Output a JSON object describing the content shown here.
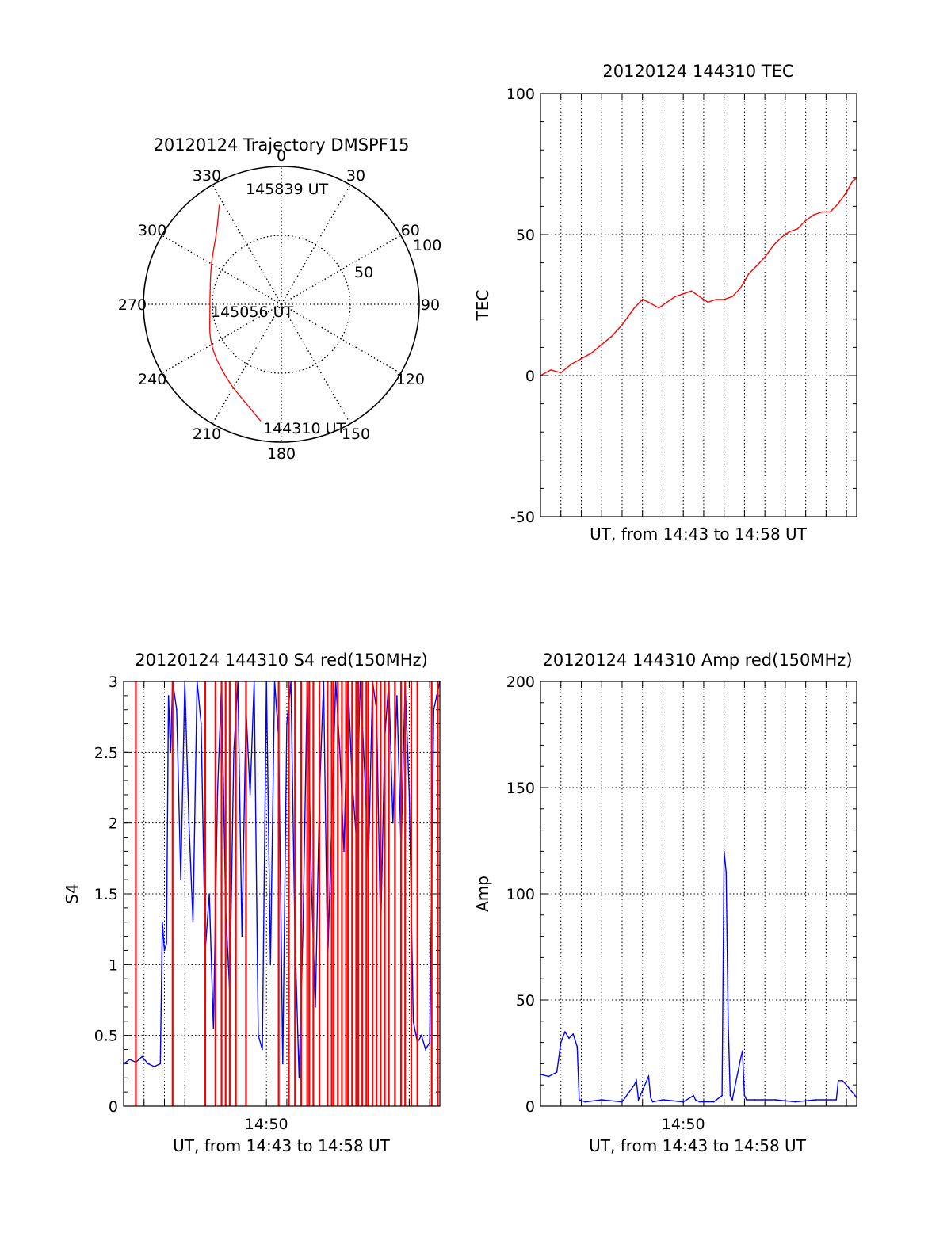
{
  "colors": {
    "red": "#ff0000",
    "blue": "#0000ff",
    "axis": "#000000"
  },
  "chart_data": [
    {
      "type": "polar",
      "title": "20120124 Trajectory DMSPF15",
      "azimuth_labels": [
        "0",
        "30",
        "60",
        "90",
        "120",
        "150",
        "180",
        "210",
        "240",
        "270",
        "300",
        "330"
      ],
      "radial_labels": [
        "50",
        "100"
      ],
      "radial_ticks": [
        50,
        100
      ],
      "grid": "dotted",
      "trajectory": {
        "color": "#ff0000",
        "points": [
          {
            "az": 190,
            "zd": 86
          },
          {
            "az": 200,
            "zd": 76
          },
          {
            "az": 215,
            "zd": 68
          },
          {
            "az": 240,
            "zd": 60
          },
          {
            "az": 265,
            "zd": 52
          },
          {
            "az": 275,
            "zd": 52
          },
          {
            "az": 300,
            "zd": 59
          },
          {
            "az": 318,
            "zd": 70
          },
          {
            "az": 328,
            "zd": 85
          }
        ]
      },
      "annotations": [
        "145839 UT",
        "145056 UT",
        "144310 UT"
      ]
    },
    {
      "type": "line",
      "title": "20120124 144310 TEC",
      "xlabel": "UT, from 14:43 to 14:58 UT",
      "ylabel": "TEC",
      "ylim": [
        -50,
        100
      ],
      "yticks": [
        "-50",
        "0",
        "50",
        "100"
      ],
      "x_unit": "minutes after 14:43",
      "xlim": [
        0,
        15.5
      ],
      "grid": true,
      "series": [
        {
          "color": "#ff0000",
          "x": [
            0,
            0.5,
            1,
            1.5,
            2,
            2.5,
            3,
            3.5,
            4,
            4.3,
            4.6,
            5,
            5.3,
            5.8,
            6.2,
            6.6,
            7,
            7.4,
            7.8,
            8.2,
            8.6,
            9,
            9.4,
            9.8,
            10.2,
            10.6,
            11,
            11.4,
            11.8,
            12.2,
            12.6,
            13,
            13.4,
            13.8,
            14.2,
            14.6,
            15,
            15.3,
            15.5
          ],
          "y": [
            0,
            2,
            1,
            4,
            6,
            8,
            11,
            14,
            18,
            21,
            24,
            27,
            26,
            24,
            26,
            28,
            29,
            30,
            28,
            26,
            27,
            27,
            28,
            31,
            36,
            39,
            42,
            46,
            49,
            51,
            52,
            55,
            57,
            58,
            58,
            61,
            65,
            69,
            70
          ]
        }
      ]
    },
    {
      "type": "line",
      "title": "20120124 144310 S4 red(150MHz)",
      "xlabel": "UT, from 14:43 to 14:58 UT",
      "ylabel": "S4",
      "ylim": [
        0,
        3
      ],
      "yticks": [
        "0",
        "0.5",
        "1",
        "1.5",
        "2",
        "2.5",
        "3"
      ],
      "xticks": [
        "14:50"
      ],
      "x_unit": "minutes after 14:43",
      "xlim": [
        0,
        15.5
      ],
      "grid": true,
      "series": [
        {
          "color": "#0000ff",
          "x": [
            0,
            0.3,
            0.6,
            0.9,
            1.2,
            1.5,
            1.8,
            1.9,
            2.0,
            2.1,
            2.2,
            2.3,
            2.4,
            2.6,
            2.8,
            3.0,
            3.2,
            3.4,
            3.6,
            3.8,
            4.0,
            4.2,
            4.4,
            4.6,
            4.8,
            5.0,
            5.2,
            5.4,
            5.6,
            5.8,
            6.0,
            6.2,
            6.4,
            6.6,
            6.8,
            7.0,
            7.2,
            7.4,
            7.6,
            7.8,
            8.0,
            8.2,
            8.4,
            8.6,
            8.8,
            9.0,
            9.2,
            9.4,
            9.6,
            9.8,
            10.0,
            10.2,
            10.4,
            10.6,
            10.8,
            11.0,
            11.2,
            11.4,
            11.6,
            11.8,
            12.0,
            12.2,
            12.4,
            12.6,
            12.8,
            13.0,
            13.2,
            13.4,
            13.6,
            13.8,
            14.0,
            14.2,
            14.4,
            14.6,
            14.8,
            15.0,
            15.2,
            15.5
          ],
          "y": [
            0.3,
            0.33,
            0.31,
            0.35,
            0.3,
            0.28,
            0.3,
            1.3,
            1.1,
            1.15,
            2.9,
            2.5,
            3.0,
            2.8,
            1.6,
            3.0,
            2.0,
            1.3,
            3.0,
            2.7,
            1.1,
            1.5,
            0.55,
            2.2,
            3.0,
            1.4,
            0.8,
            2.5,
            3.0,
            1.2,
            2.8,
            2.2,
            3.0,
            0.5,
            0.4,
            3.0,
            1.0,
            3.0,
            2.6,
            0.3,
            2.7,
            3.0,
            1.2,
            0.2,
            1.3,
            3.0,
            1.6,
            0.7,
            2.2,
            3.0,
            1.0,
            2.0,
            3.0,
            2.5,
            1.8,
            3.0,
            2.3,
            1.9,
            3.0,
            2.4,
            1.7,
            3.0,
            2.8,
            1.2,
            2.6,
            3.0,
            2.0,
            2.9,
            1.8,
            3.0,
            2.2,
            0.6,
            0.45,
            0.5,
            0.4,
            0.45,
            2.8,
            3.0
          ]
        },
        {
          "color": "#ff0000",
          "name": "",
          "x": [
            0.6,
            2.4,
            4.0,
            4.5,
            4.8,
            5.0,
            5.2,
            5.5,
            6.0,
            7.6,
            8.1,
            8.4,
            8.7,
            9.0,
            9.1,
            9.3,
            9.6,
            10.0,
            10.2,
            10.3,
            10.5,
            10.7,
            10.9,
            11.0,
            11.2,
            11.4,
            11.5,
            11.7,
            11.9,
            12.0,
            12.2,
            12.4,
            12.6,
            12.8,
            13.0,
            13.3,
            13.6,
            13.8,
            14.1,
            14.4,
            15.1,
            15.4
          ],
          "y": [
            3,
            3,
            3,
            3,
            3,
            3,
            3,
            3,
            3,
            3,
            3,
            3,
            3,
            3,
            3,
            3,
            3,
            3,
            3,
            3,
            3,
            3,
            3,
            3,
            3,
            3,
            3,
            3,
            3,
            3,
            3,
            3,
            3,
            3,
            3,
            3,
            3,
            3,
            3,
            3,
            3,
            3
          ]
        }
      ]
    },
    {
      "type": "line",
      "title": "20120124 144310 Amp red(150MHz)",
      "xlabel": "UT, from 14:43 to 14:58 UT",
      "ylabel": "Amp",
      "ylim": [
        0,
        200
      ],
      "yticks": [
        "0",
        "50",
        "100",
        "150",
        "200"
      ],
      "xticks": [
        "14:50"
      ],
      "x_unit": "minutes after 14:43",
      "xlim": [
        0,
        15.5
      ],
      "grid": true,
      "series": [
        {
          "color": "#0000ff",
          "x": [
            0,
            0.4,
            0.8,
            1.0,
            1.2,
            1.4,
            1.6,
            1.8,
            1.9,
            2.2,
            3.0,
            4.0,
            4.6,
            4.7,
            4.8,
            5.3,
            5.4,
            5.5,
            6.0,
            7.0,
            7.5,
            7.6,
            7.8,
            8.5,
            8.9,
            9.0,
            9.1,
            9.2,
            9.3,
            9.4,
            9.8,
            9.9,
            10.0,
            10.1,
            10.5,
            11.5,
            12.5,
            13.5,
            14.5,
            14.6,
            14.8,
            15.0,
            15.5
          ],
          "y": [
            15,
            14,
            16,
            30,
            35,
            32,
            34,
            28,
            3,
            2,
            3,
            2,
            10,
            12,
            3,
            14,
            4,
            2,
            3,
            2,
            5,
            3,
            2,
            2,
            5,
            120,
            110,
            40,
            5,
            3,
            22,
            26,
            5,
            3,
            3,
            3,
            2,
            3,
            3,
            12,
            12,
            10,
            4
          ]
        }
      ]
    }
  ]
}
